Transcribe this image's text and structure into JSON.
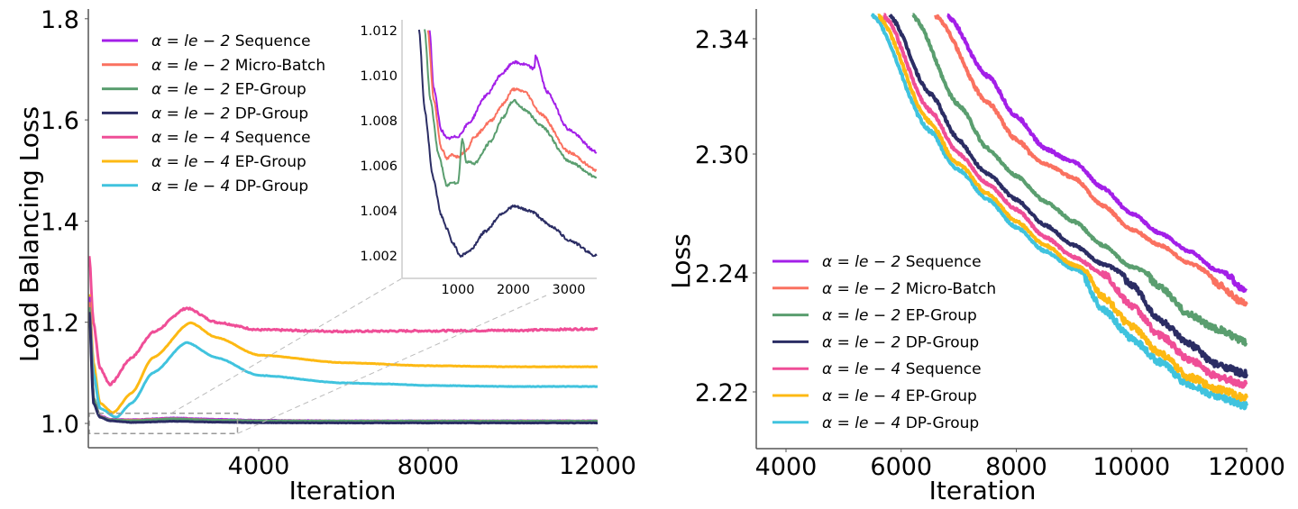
{
  "colors": {
    "a2_sequence": "#a31fe8",
    "a2_microbatch": "#fa7160",
    "a2_epgroup": "#5a9e6f",
    "a2_dpgroup": "#2b2d64",
    "a4_sequence": "#ef4e97",
    "a4_epgroup": "#fdb913",
    "a4_dpgroup": "#40c3de"
  },
  "legend": [
    {
      "key": "a2_sequence",
      "alpha": "α = le − 2",
      "label": "Sequence"
    },
    {
      "key": "a2_microbatch",
      "alpha": "α = le − 2",
      "label": "Micro-Batch"
    },
    {
      "key": "a2_epgroup",
      "alpha": "α = le − 2",
      "label": "EP-Group"
    },
    {
      "key": "a2_dpgroup",
      "alpha": "α = le − 2",
      "label": "DP-Group"
    },
    {
      "key": "a4_sequence",
      "alpha": "α = le − 4",
      "label": "Sequence"
    },
    {
      "key": "a4_epgroup",
      "alpha": "α = le − 4",
      "label": "EP-Group"
    },
    {
      "key": "a4_dpgroup",
      "alpha": "α = le − 4",
      "label": "DP-Group"
    }
  ],
  "chart_data": [
    {
      "type": "line",
      "id": "load-balancing",
      "title": "",
      "xlabel": "Iteration",
      "ylabel": "Load Balancing Loss",
      "xlim": [
        0,
        12000
      ],
      "ylim": [
        0.95,
        1.8
      ],
      "xticks": [
        4000,
        8000,
        12000
      ],
      "xtick_labels": [
        "4000",
        "8000",
        "12000"
      ],
      "yticks": [
        1.0,
        1.2,
        1.4,
        1.6,
        1.8
      ],
      "ytick_labels": [
        "1.0",
        "1.2",
        "1.4",
        "1.6",
        "1.8"
      ],
      "grid": false,
      "legend_position": "top-left",
      "zoom_box": {
        "x": [
          0,
          3500
        ],
        "y": [
          0.98,
          1.02
        ]
      },
      "series": [
        {
          "name": "α = le−2 Sequence",
          "key": "a2_sequence",
          "x": [
            0,
            100,
            250,
            500,
            1000,
            2000,
            3000,
            4000,
            6000,
            8000,
            10000,
            12000
          ],
          "y": [
            1.25,
            1.05,
            1.015,
            1.008,
            1.0072,
            1.0105,
            1.008,
            1.006,
            1.005,
            1.005,
            1.005,
            1.005
          ]
        },
        {
          "name": "α = le−2 Micro-Batch",
          "key": "a2_microbatch",
          "x": [
            0,
            100,
            250,
            500,
            1000,
            2000,
            3000,
            4000,
            6000,
            8000,
            10000,
            12000
          ],
          "y": [
            1.24,
            1.05,
            1.014,
            1.007,
            1.0064,
            1.0093,
            1.0065,
            1.005,
            1.0045,
            1.0045,
            1.0045,
            1.0045
          ]
        },
        {
          "name": "α = le−2 EP-Group",
          "key": "a2_epgroup",
          "x": [
            0,
            100,
            250,
            500,
            1000,
            2000,
            3000,
            4000,
            6000,
            8000,
            10000,
            12000
          ],
          "y": [
            1.23,
            1.05,
            1.013,
            1.007,
            1.0052,
            1.0089,
            1.0062,
            1.005,
            1.0045,
            1.0045,
            1.0045,
            1.0045
          ]
        },
        {
          "name": "α = le−2 DP-Group",
          "key": "a2_dpgroup",
          "x": [
            0,
            100,
            250,
            500,
            1000,
            2000,
            3000,
            4000,
            6000,
            8000,
            10000,
            12000
          ],
          "y": [
            1.22,
            1.04,
            1.012,
            1.005,
            1.002,
            1.0042,
            1.0025,
            1.0015,
            1.001,
            1.001,
            1.001,
            1.001
          ]
        },
        {
          "name": "α = le−4 Sequence",
          "key": "a4_sequence",
          "x": [
            0,
            100,
            250,
            490,
            1000,
            1500,
            2300,
            3000,
            4000,
            6000,
            8000,
            10000,
            12000
          ],
          "y": [
            1.331,
            1.2,
            1.11,
            1.077,
            1.13,
            1.18,
            1.228,
            1.2,
            1.185,
            1.182,
            1.183,
            1.184,
            1.187
          ]
        },
        {
          "name": "α = le−4 EP-Group",
          "key": "a4_epgroup",
          "x": [
            0,
            100,
            250,
            560,
            1000,
            1500,
            2390,
            3000,
            4000,
            6000,
            8000,
            10000,
            12000
          ],
          "y": [
            1.255,
            1.12,
            1.04,
            1.021,
            1.06,
            1.13,
            1.199,
            1.17,
            1.135,
            1.12,
            1.114,
            1.112,
            1.112
          ]
        },
        {
          "name": "α = le−4 DP-Group",
          "key": "a4_dpgroup",
          "x": [
            0,
            100,
            250,
            640,
            1000,
            1500,
            2300,
            3000,
            4000,
            6000,
            7000,
            8000,
            10000,
            12000
          ],
          "y": [
            1.239,
            1.1,
            1.03,
            1.012,
            1.04,
            1.1,
            1.16,
            1.13,
            1.095,
            1.08,
            1.078,
            1.075,
            1.073,
            1.073
          ]
        }
      ],
      "inset": {
        "xlim": [
          0,
          3500
        ],
        "ylim": [
          1.001,
          1.012
        ],
        "xticks": [
          1000,
          2000,
          3000
        ],
        "xtick_labels": [
          "1000",
          "2000",
          "3000"
        ],
        "yticks": [
          1.002,
          1.004,
          1.006,
          1.008,
          1.01,
          1.012
        ],
        "ytick_labels": [
          "1.002",
          "1.004",
          "1.006",
          "1.008",
          "1.010",
          "1.012"
        ],
        "series": [
          {
            "key": "a2_sequence",
            "x": [
              490,
              560,
              700,
              800,
              1000,
              1200,
              1500,
              1800,
              2000,
              2200,
              2380,
              2400,
              2600,
              3000,
              3500
            ],
            "y": [
              1.012,
              1.0095,
              1.0076,
              1.0072,
              1.0073,
              1.0079,
              1.0091,
              1.0101,
              1.0106,
              1.0105,
              1.0103,
              1.0109,
              1.0093,
              1.0076,
              1.0066
            ]
          },
          {
            "key": "a2_microbatch",
            "x": [
              460,
              560,
              700,
              800,
              900,
              1000,
              1150,
              1300,
              1600,
              1800,
              2000,
              2200,
              2500,
              3000,
              3500
            ],
            "y": [
              1.012,
              1.009,
              1.0068,
              1.0063,
              1.0065,
              1.0064,
              1.0067,
              1.0073,
              1.008,
              1.0087,
              1.0094,
              1.0093,
              1.0083,
              1.0066,
              1.0058
            ]
          },
          {
            "key": "a2_epgroup",
            "x": [
              400,
              500,
              650,
              800,
              900,
              1000,
              1080,
              1150,
              1300,
              1600,
              1800,
              2000,
              2200,
              2500,
              3000,
              3500
            ],
            "y": [
              1.012,
              1.009,
              1.0065,
              1.0051,
              1.0053,
              1.0052,
              1.0072,
              1.0062,
              1.0061,
              1.0071,
              1.0081,
              1.0089,
              1.0085,
              1.0078,
              1.0062,
              1.0055
            ]
          },
          {
            "key": "a2_dpgroup",
            "x": [
              300,
              400,
              550,
              700,
              800,
              900,
              1050,
              1200,
              1500,
              1800,
              2000,
              2300,
              2700,
              3000,
              3500
            ],
            "y": [
              1.012,
              1.0085,
              1.0055,
              1.0038,
              1.0032,
              1.0026,
              1.002,
              1.0022,
              1.0031,
              1.0039,
              1.0042,
              1.004,
              1.0033,
              1.0027,
              1.002
            ]
          }
        ]
      }
    },
    {
      "type": "line",
      "id": "training-loss",
      "title": "",
      "xlabel": "Iteration",
      "ylabel": "Loss",
      "xlim": [
        3500,
        12000
      ],
      "ylim": [
        2.213,
        2.35
      ],
      "yscale": "log-like (ticks evenly spaced)",
      "xticks": [
        4000,
        6000,
        8000,
        10000,
        12000
      ],
      "xtick_labels": [
        "4000",
        "6000",
        "8000",
        "10000",
        "12000"
      ],
      "yticks": [
        2.22,
        2.24,
        2.3,
        2.34
      ],
      "ytick_labels": [
        "2.22",
        "2.24",
        "2.30",
        "2.34"
      ],
      "grid": false,
      "legend_position": "bottom-left",
      "series": [
        {
          "name": "α = le−2 Sequence",
          "key": "a2_sequence",
          "x": [
            6800,
            7500,
            8000,
            8500,
            9000,
            9500,
            10000,
            10500,
            11000,
            11500,
            12000
          ],
          "y": [
            2.348,
            2.327,
            2.313,
            2.302,
            2.296,
            2.283,
            2.27,
            2.26,
            2.251,
            2.241,
            2.237
          ]
        },
        {
          "name": "α = le−2 Micro-Batch",
          "key": "a2_microbatch",
          "x": [
            6600,
            7500,
            8000,
            8500,
            9000,
            9500,
            10000,
            10500,
            11000,
            11500,
            12000
          ],
          "y": [
            2.348,
            2.318,
            2.305,
            2.295,
            2.288,
            2.274,
            2.262,
            2.254,
            2.245,
            2.238,
            2.2347
          ]
        },
        {
          "name": "α = le−2 EP-Group",
          "key": "a2_epgroup",
          "x": [
            6200,
            7000,
            7500,
            8000,
            8500,
            9000,
            9500,
            10000,
            10500,
            11000,
            11500,
            12000
          ],
          "y": [
            2.348,
            2.317,
            2.302,
            2.289,
            2.276,
            2.266,
            2.254,
            2.243,
            2.2375,
            2.233,
            2.2305,
            2.2283
          ]
        },
        {
          "name": "α = le−2 DP-Group",
          "key": "a2_dpgroup",
          "x": [
            5800,
            6500,
            7000,
            7500,
            8000,
            8500,
            9000,
            9500,
            10000,
            10500,
            11000,
            11500,
            12000
          ],
          "y": [
            2.348,
            2.321,
            2.305,
            2.29,
            2.277,
            2.264,
            2.254,
            2.2445,
            2.238,
            2.232,
            2.228,
            2.2245,
            2.223
          ]
        },
        {
          "name": "α = le−4 Sequence",
          "key": "a4_sequence",
          "x": [
            5700,
            6500,
            7000,
            7500,
            8000,
            8500,
            9000,
            9500,
            10000,
            10500,
            11000,
            11500,
            12000
          ],
          "y": [
            2.348,
            2.315,
            2.3,
            2.285,
            2.272,
            2.258,
            2.248,
            2.24,
            2.2345,
            2.2295,
            2.2255,
            2.2225,
            2.2212
          ]
        },
        {
          "name": "α = le−4 EP-Group",
          "key": "a4_epgroup",
          "x": [
            5600,
            6500,
            7000,
            7500,
            8000,
            8500,
            9000,
            9500,
            10000,
            10500,
            11000,
            11500,
            12000
          ],
          "y": [
            2.348,
            2.311,
            2.295,
            2.28,
            2.266,
            2.254,
            2.244,
            2.236,
            2.231,
            2.2265,
            2.2225,
            2.2205,
            2.219
          ]
        },
        {
          "name": "α = le−4 DP-Group",
          "key": "a4_dpgroup",
          "x": [
            5500,
            6500,
            7000,
            7500,
            8000,
            8500,
            9000,
            9500,
            10000,
            10500,
            11000,
            11500,
            12000
          ],
          "y": [
            2.348,
            2.308,
            2.292,
            2.277,
            2.263,
            2.251,
            2.242,
            2.234,
            2.229,
            2.225,
            2.2212,
            2.2192,
            2.2177
          ]
        }
      ]
    }
  ]
}
